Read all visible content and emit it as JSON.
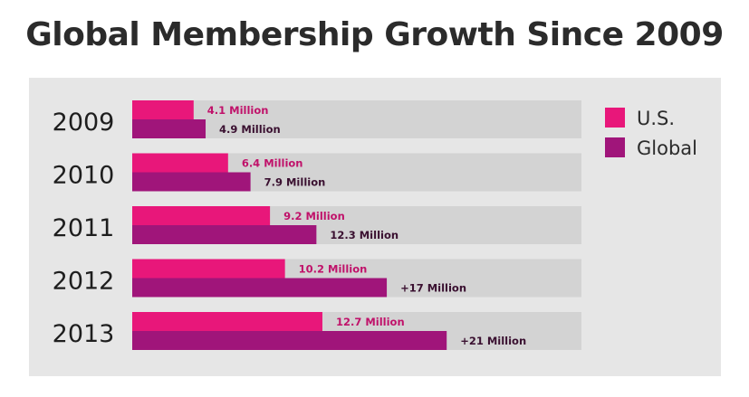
{
  "chart_data": {
    "type": "bar",
    "orientation": "horizontal",
    "title": "Global Membership Growth Since 2009",
    "categories": [
      "2009",
      "2010",
      "2011",
      "2012",
      "2013"
    ],
    "series": [
      {
        "name": "U.S.",
        "color": "#e8177a",
        "values": [
          4.1,
          6.4,
          9.2,
          10.2,
          12.7
        ],
        "labels": [
          "4.1 Million",
          "6.4 Million",
          "9.2 Million",
          "10.2 Million",
          "12.7 Million"
        ]
      },
      {
        "name": "Global",
        "color": "#a0157a",
        "values": [
          4.9,
          7.9,
          12.3,
          17,
          21
        ],
        "labels": [
          "4.9 Million",
          "7.9 Million",
          "12.3 Million",
          "+17 Million",
          "+21 Million"
        ]
      }
    ],
    "legend_position": "top-right",
    "grid": false,
    "xlim": [
      0,
      30
    ]
  }
}
